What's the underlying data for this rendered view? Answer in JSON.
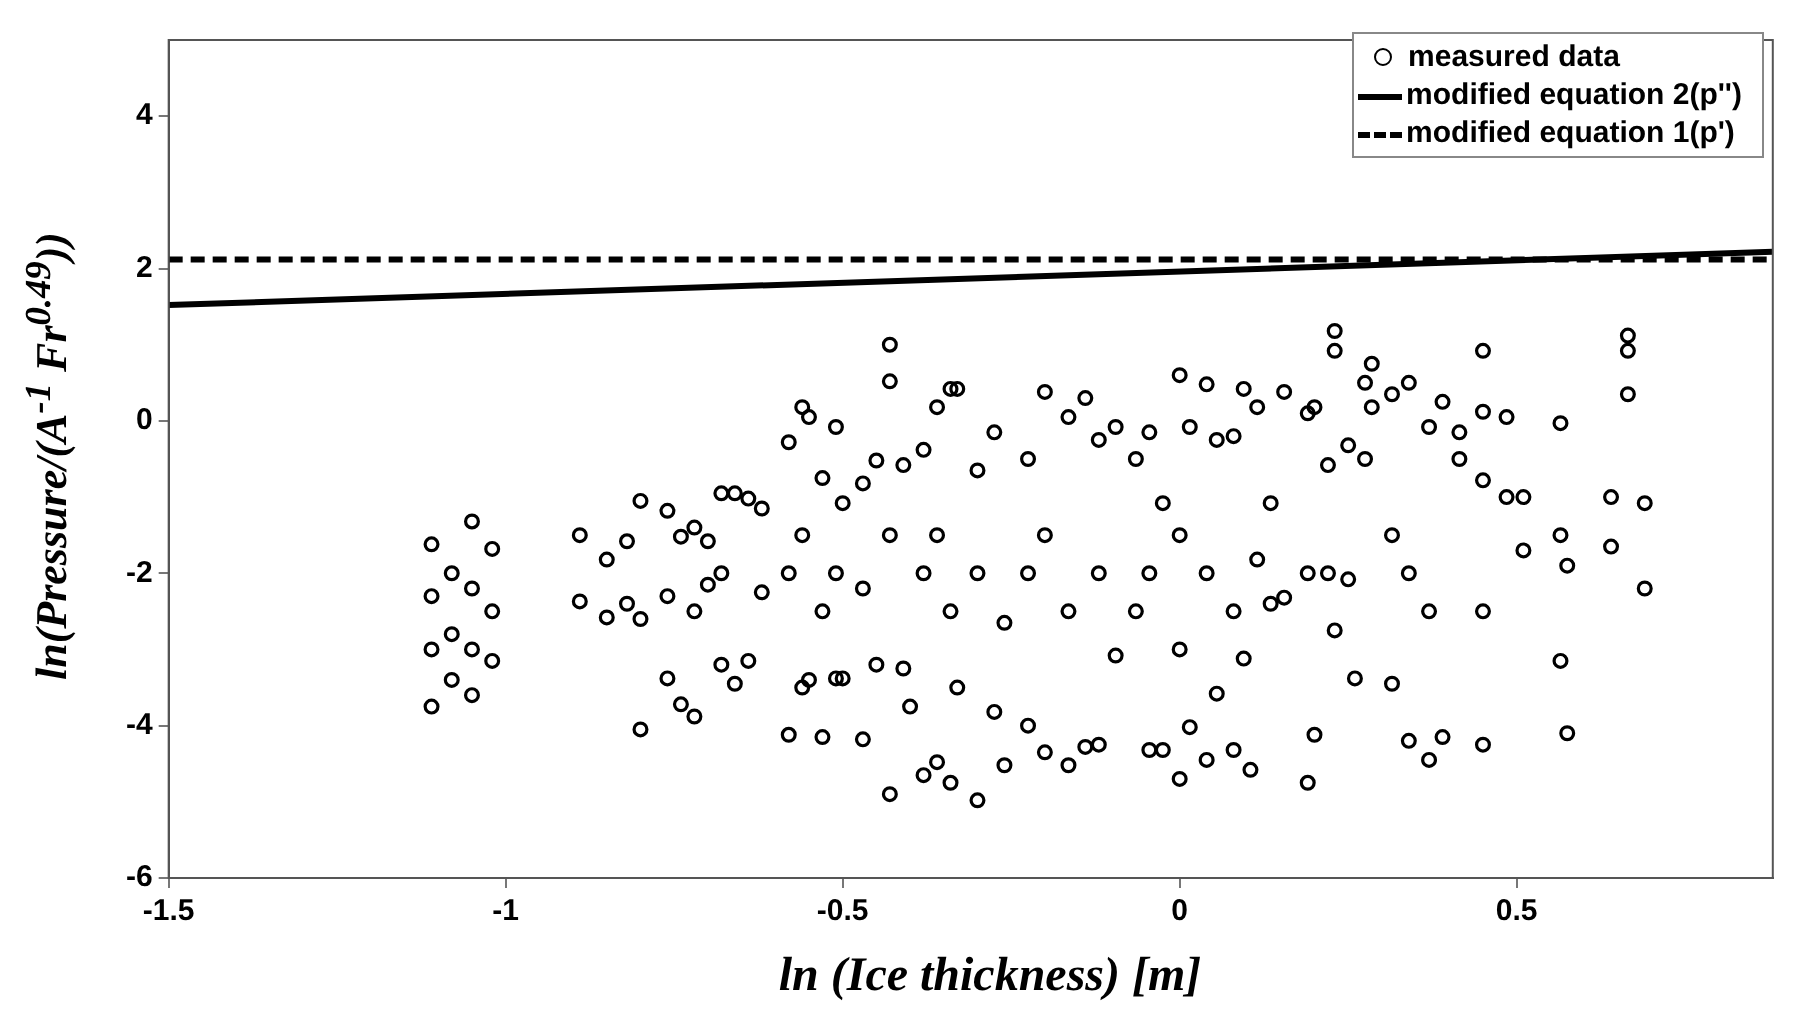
{
  "chart_data": {
    "type": "scatter",
    "xlabel": "ln (Ice thickness) [m]",
    "ylabel": "ln(Pressure/(A$^{-1}$ Fr$^{0.49}$))",
    "xlim": [
      -1.5,
      0.88
    ],
    "ylim": [
      -6,
      5
    ],
    "xticks": [
      -1.5,
      -1,
      -0.5,
      0,
      0.5
    ],
    "yticks": [
      -6,
      -4,
      -2,
      0,
      2,
      4
    ],
    "legend": "top right",
    "series": [
      {
        "name": "measured data",
        "marker": "circle",
        "color": "#000000",
        "x": [
          -1.11,
          -1.11,
          -1.11,
          -1.11,
          -1.08,
          -1.08,
          -1.08,
          -1.05,
          -1.05,
          -1.05,
          -1.05,
          -1.02,
          -1.02,
          -1.02,
          -0.89,
          -0.89,
          -0.85,
          -0.85,
          -0.82,
          -0.82,
          -0.8,
          -0.8,
          -0.8,
          -0.76,
          -0.76,
          -0.76,
          -0.74,
          -0.74,
          -0.72,
          -0.72,
          -0.72,
          -0.7,
          -0.7,
          -0.68,
          -0.68,
          -0.68,
          -0.66,
          -0.66,
          -0.64,
          -0.64,
          -0.62,
          -0.62,
          -0.58,
          -0.58,
          -0.58,
          -0.56,
          -0.56,
          -0.56,
          -0.55,
          -0.55,
          -0.53,
          -0.53,
          -0.53,
          -0.51,
          -0.51,
          -0.51,
          -0.5,
          -0.5,
          -0.47,
          -0.47,
          -0.47,
          -0.45,
          -0.45,
          -0.43,
          -0.43,
          -0.43,
          -0.43,
          -0.41,
          -0.41,
          -0.4,
          -0.38,
          -0.38,
          -0.38,
          -0.36,
          -0.36,
          -0.36,
          -0.34,
          -0.34,
          -0.34,
          -0.33,
          -0.33,
          -0.3,
          -0.3,
          -0.3,
          -0.275,
          -0.275,
          -0.26,
          -0.26,
          -0.225,
          -0.225,
          -0.225,
          -0.2,
          -0.2,
          -0.2,
          -0.165,
          -0.165,
          -0.165,
          -0.14,
          -0.14,
          -0.12,
          -0.12,
          -0.12,
          -0.095,
          -0.095,
          -0.065,
          -0.065,
          -0.045,
          -0.045,
          -0.045,
          -0.025,
          -0.025,
          0,
          0,
          0,
          0,
          0.015,
          0.015,
          0.04,
          0.04,
          0.04,
          0.055,
          0.055,
          0.08,
          0.08,
          0.08,
          0.095,
          0.095,
          0.105,
          0.115,
          0.115,
          0.135,
          0.135,
          0.155,
          0.155,
          0.19,
          0.19,
          0.19,
          0.2,
          0.2,
          0.22,
          0.22,
          0.23,
          0.23,
          0.23,
          0.25,
          0.25,
          0.26,
          0.275,
          0.275,
          0.285,
          0.285,
          0.315,
          0.315,
          0.315,
          0.34,
          0.34,
          0.34,
          0.37,
          0.37,
          0.37,
          0.39,
          0.39,
          0.415,
          0.415,
          0.45,
          0.45,
          0.45,
          0.45,
          0.45,
          0.485,
          0.485,
          0.51,
          0.51,
          0.565,
          0.565,
          0.565,
          0.575,
          0.575,
          0.64,
          0.64,
          0.665,
          0.665,
          0.665,
          0.69,
          0.69
        ],
        "values": [
          -1.62,
          -2.3,
          -3.0,
          -3.75,
          -2.0,
          -2.8,
          -3.4,
          -1.32,
          -2.2,
          -3.0,
          -3.6,
          -1.68,
          -2.5,
          -3.15,
          -1.5,
          -2.37,
          -1.82,
          -2.58,
          -1.58,
          -2.4,
          -1.05,
          -2.6,
          -4.05,
          -1.18,
          -2.3,
          -3.38,
          -1.52,
          -3.72,
          -1.4,
          -2.5,
          -3.88,
          -1.58,
          -2.15,
          -0.95,
          -2.0,
          -3.2,
          -0.95,
          -3.45,
          -1.02,
          -3.15,
          -1.15,
          -2.25,
          -0.28,
          -2.0,
          -4.12,
          0.18,
          -1.5,
          -3.5,
          0.05,
          -3.4,
          -0.75,
          -2.5,
          -4.15,
          -0.08,
          -2.0,
          -3.38,
          -1.08,
          -3.38,
          -0.82,
          -2.2,
          -4.18,
          -0.52,
          -3.2,
          1.0,
          0.52,
          -1.5,
          -4.9,
          -0.58,
          -3.25,
          -3.75,
          -0.38,
          -2.0,
          -4.65,
          0.18,
          -1.5,
          -4.48,
          0.42,
          -2.5,
          -4.75,
          0.42,
          -3.5,
          -0.65,
          -2.0,
          -4.98,
          -0.15,
          -3.82,
          -2.65,
          -4.52,
          -0.5,
          -2.0,
          -4.0,
          0.38,
          -1.5,
          -4.35,
          0.05,
          -2.5,
          -4.52,
          0.3,
          -4.28,
          -0.25,
          -2.0,
          -4.25,
          -0.08,
          -3.08,
          -0.5,
          -2.5,
          -0.15,
          -2.0,
          -4.32,
          -1.08,
          -4.32,
          0.6,
          -1.5,
          -3.0,
          -4.7,
          -0.08,
          -4.02,
          0.48,
          -2.0,
          -4.45,
          -0.25,
          -3.58,
          -0.2,
          -2.5,
          -4.32,
          0.42,
          -3.12,
          -4.58,
          0.18,
          -1.82,
          -1.08,
          -2.4,
          0.38,
          -2.32,
          0.1,
          -2.0,
          -4.75,
          0.18,
          -4.12,
          -0.58,
          -2.0,
          1.18,
          0.92,
          -2.75,
          -0.32,
          -2.08,
          -3.38,
          0.5,
          -0.5,
          0.75,
          0.18,
          0.35,
          -1.5,
          -3.45,
          0.5,
          -2.0,
          -4.2,
          -0.08,
          -2.5,
          -4.45,
          0.25,
          -4.15,
          -0.15,
          -0.5,
          0.92,
          0.12,
          -0.78,
          -2.5,
          -4.25,
          0.05,
          -1.0,
          -1.0,
          -1.7,
          -0.03,
          -1.5,
          -3.15,
          -1.9,
          -4.1,
          -1.0,
          -1.65,
          1.12,
          0.92,
          0.35,
          -1.08,
          -2.2
        ]
      },
      {
        "name": "modified equation 2(p'')",
        "type": "line",
        "line_style": "solid",
        "color": "#000000",
        "x": [
          -1.5,
          0.88
        ],
        "values": [
          1.52,
          2.22
        ]
      },
      {
        "name": "modified equation 1(p')",
        "type": "line",
        "line_style": "dashed",
        "color": "#000000",
        "x": [
          -1.5,
          0.88
        ],
        "values": [
          2.12,
          2.12
        ]
      }
    ]
  }
}
